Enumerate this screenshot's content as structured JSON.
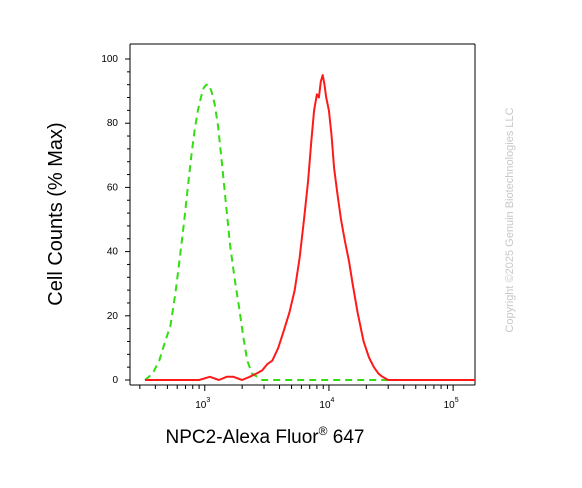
{
  "chart_data": {
    "type": "line",
    "ylabel": "Cell Counts (% Max)",
    "xlabel": {
      "main": "NPC2-Alexa Fluor",
      "superscript": "®",
      "suffix": " 647"
    },
    "x_scale": "log",
    "xlim": [
      250,
      150000
    ],
    "ylim": [
      0,
      100
    ],
    "yticks": [
      0,
      20,
      40,
      60,
      80,
      100
    ],
    "ytick_labels": [
      "0",
      "20",
      "40",
      "60",
      "80",
      "100"
    ],
    "xticks": [
      {
        "value": 1000,
        "base": "10",
        "exp": "3"
      },
      {
        "value": 10000,
        "base": "10",
        "exp": "4"
      },
      {
        "value": 100000,
        "base": "10",
        "exp": "5"
      }
    ],
    "grid": false,
    "series": [
      {
        "color": "#33dd11",
        "style": "dashed",
        "x": [
          330,
          380,
          430,
          480,
          530,
          580,
          630,
          680,
          730,
          780,
          830,
          880,
          930,
          980,
          1030,
          1080,
          1130,
          1200,
          1280,
          1380,
          1480,
          1600,
          1750,
          1900,
          2050,
          2200,
          2400,
          2650,
          2900,
          3300,
          4000,
          6000,
          10000,
          20000,
          40000
        ],
        "y": [
          0,
          2,
          6,
          12,
          17,
          27,
          38,
          49,
          60,
          70,
          78,
          84,
          88,
          91,
          92,
          92,
          90,
          86,
          79,
          67,
          55,
          42,
          31,
          22,
          13,
          6,
          2,
          1,
          0,
          0,
          0,
          0,
          0,
          0,
          0
        ]
      },
      {
        "color": "#ff1a1a",
        "style": "solid",
        "x": [
          330,
          500,
          700,
          900,
          1100,
          1300,
          1500,
          1700,
          2000,
          2300,
          2600,
          2900,
          3200,
          3500,
          3900,
          4300,
          4800,
          5300,
          5800,
          6300,
          6800,
          7200,
          7600,
          8000,
          8300,
          8600,
          8900,
          9200,
          9500,
          10000,
          10500,
          11000,
          11700,
          12500,
          13500,
          14500,
          15500,
          17000,
          19000,
          21000,
          23000,
          25000,
          27000,
          30000,
          35000,
          45000,
          60000,
          90000,
          150000
        ],
        "y": [
          0,
          0,
          0,
          0,
          1,
          0,
          1,
          1,
          0,
          1,
          2,
          3,
          5,
          6,
          10,
          15,
          21,
          28,
          38,
          50,
          62,
          74,
          84,
          89,
          88,
          93,
          95,
          92,
          88,
          84,
          76,
          66,
          58,
          50,
          43,
          37,
          30,
          21,
          12,
          7,
          4,
          2,
          1,
          0,
          0,
          0,
          0,
          0,
          0
        ]
      }
    ]
  },
  "copyright": "Copyright ©2025 Genuin Biotechnologies LLC"
}
